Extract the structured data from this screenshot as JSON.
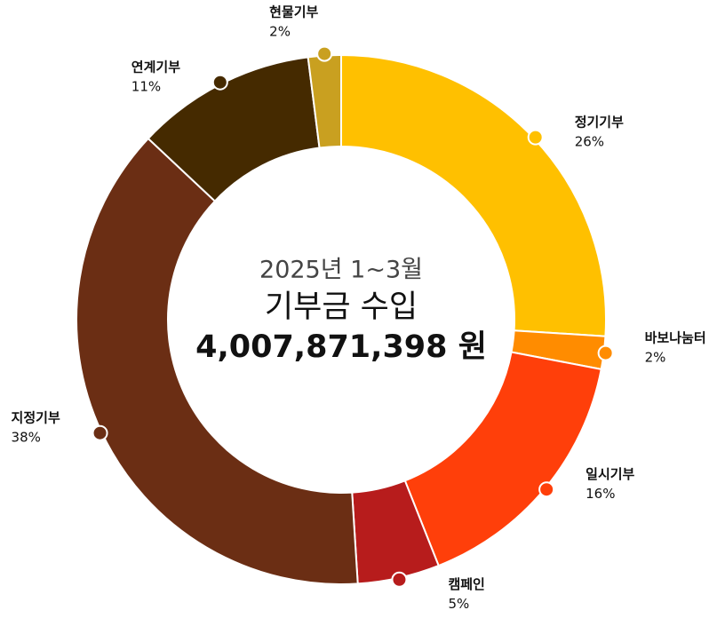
{
  "chart_data": {
    "type": "donut",
    "center_text": [
      "2025년 1~3월",
      "기부금 수입",
      "4,007,871,398 원"
    ],
    "categories": [
      "정기기부",
      "바보나눔터",
      "일시기부",
      "캠페인",
      "지정기부",
      "연계기부",
      "현물기부"
    ],
    "values": [
      26,
      2,
      16,
      5,
      38,
      11,
      2
    ],
    "value_labels": [
      "26%",
      "2%",
      "16%",
      "5%",
      "38%",
      "11%",
      "2%"
    ],
    "colors": [
      "#FFC000",
      "#FF8C00",
      "#FF3F0A",
      "#B71C1C",
      "#6B2E14",
      "#452A00",
      "#C9A020"
    ]
  }
}
